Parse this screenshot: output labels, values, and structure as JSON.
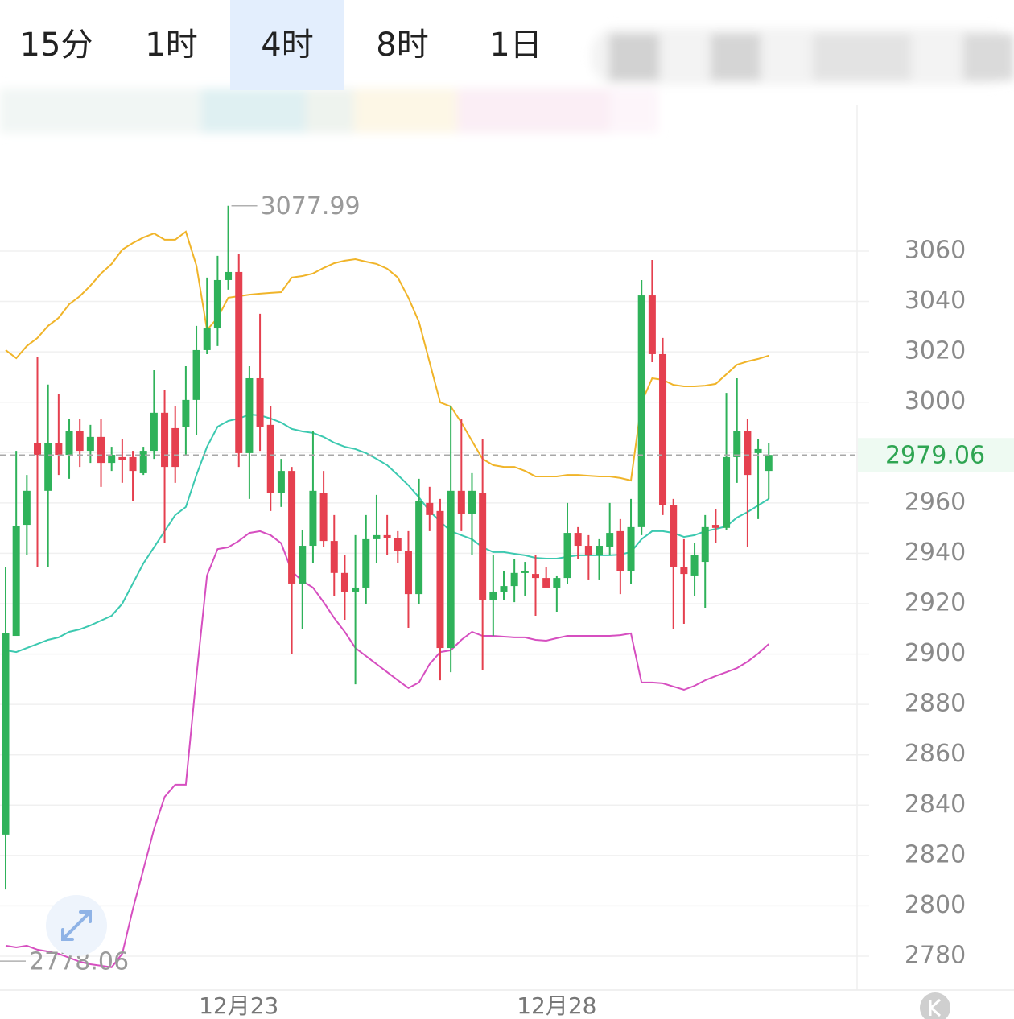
{
  "timeframes": [
    "15分",
    "1时",
    "4时",
    "8时",
    "1日"
  ],
  "active_timeframe": "4时",
  "chart_data": {
    "type": "candlestick",
    "categories": [
      null,
      null,
      null,
      null,
      null,
      null,
      null,
      null,
      null,
      null,
      null,
      null,
      null,
      null,
      null,
      null,
      null,
      null,
      null,
      null,
      null,
      null,
      "12月23",
      null,
      null,
      null,
      null,
      null,
      null,
      null,
      null,
      null,
      null,
      null,
      null,
      null,
      null,
      null,
      null,
      null,
      null,
      null,
      null,
      null,
      null,
      null,
      null,
      null,
      null,
      null,
      null,
      null,
      "12月28",
      null,
      null,
      null,
      null,
      null,
      null,
      null,
      null,
      null,
      null,
      null,
      null,
      null,
      null,
      null,
      null,
      null,
      null,
      null,
      null
    ],
    "ohlc": [
      [
        2828.3,
        2934.4,
        2806.5,
        2908.2
      ],
      [
        2907.2,
        2980.7,
        2907.2,
        2951.0
      ],
      [
        2951.3,
        2971.1,
        2939.2,
        2964.8
      ],
      [
        2983.9,
        3018.1,
        2934.4,
        2979.1
      ],
      [
        2964.8,
        3007.0,
        2934.4,
        2983.9
      ],
      [
        2983.9,
        3003.1,
        2971.1,
        2979.1
      ],
      [
        2979.1,
        2993.5,
        2969.6,
        2988.7
      ],
      [
        2988.7,
        2993.5,
        2974.3,
        2980.7
      ],
      [
        2980.7,
        2991.0,
        2975.9,
        2986.2
      ],
      [
        2986.2,
        2993.5,
        2966.4,
        2975.9
      ],
      [
        2975.9,
        2982.3,
        2972.7,
        2979.1
      ],
      [
        2978.2,
        2985.5,
        2968.0,
        2976.9
      ],
      [
        2978.2,
        2980.7,
        2960.9,
        2972.7
      ],
      [
        2971.8,
        2982.3,
        2971.1,
        2980.7
      ],
      [
        2980.7,
        3012.7,
        2977.5,
        2995.8
      ],
      [
        2995.8,
        3004.7,
        2944.0,
        2974.3
      ],
      [
        2989.7,
        2998.3,
        2968.0,
        2974.3
      ],
      [
        2990.3,
        3014.3,
        2979.1,
        3000.9
      ],
      [
        3000.9,
        3030.3,
        2987.1,
        3020.7
      ],
      [
        3020.7,
        3049.5,
        3019.1,
        3029.3
      ],
      [
        3029.3,
        3058.1,
        3022.3,
        3048.5
      ],
      [
        3048.5,
        3077.99,
        3044.7,
        3051.7
      ],
      [
        3051.7,
        3059.0,
        2974.3,
        2979.8
      ],
      [
        2979.8,
        3014.3,
        2961.6,
        3009.5
      ],
      [
        3009.5,
        3035.1,
        2980.7,
        2990.3
      ],
      [
        2991.0,
        2998.3,
        2956.8,
        2964.1
      ],
      [
        2964.1,
        2977.5,
        2958.4,
        2972.7
      ],
      [
        2972.7,
        2974.3,
        2900.2,
        2928.0
      ],
      [
        2928.0,
        2949.4,
        2909.8,
        2943.0
      ],
      [
        2943.0,
        2988.7,
        2936.0,
        2964.8
      ],
      [
        2964.1,
        2972.7,
        2942.4,
        2944.9
      ],
      [
        2944.9,
        2955.2,
        2923.2,
        2932.2
      ],
      [
        2932.2,
        2939.2,
        2913.6,
        2924.8
      ],
      [
        2924.8,
        2947.2,
        2888.0,
        2926.4
      ],
      [
        2926.4,
        2955.2,
        2920.0,
        2945.6
      ],
      [
        2945.6,
        2963.2,
        2936.0,
        2947.2
      ],
      [
        2947.2,
        2955.2,
        2939.2,
        2946.2
      ],
      [
        2946.2,
        2948.8,
        2936.0,
        2940.8
      ],
      [
        2940.8,
        2948.8,
        2910.4,
        2923.8
      ],
      [
        2923.8,
        2969.6,
        2920.0,
        2960.6
      ],
      [
        2960.0,
        2966.4,
        2948.8,
        2955.2
      ],
      [
        2956.8,
        2961.6,
        2889.6,
        2902.4
      ],
      [
        2902.4,
        2998.3,
        2892.8,
        2964.8
      ],
      [
        2964.8,
        2993.5,
        2948.8,
        2955.8
      ],
      [
        2955.8,
        2971.8,
        2939.2,
        2964.8
      ],
      [
        2964.1,
        2985.5,
        2893.8,
        2921.6
      ],
      [
        2921.6,
        2939.2,
        2907.2,
        2924.8
      ],
      [
        2924.8,
        2932.8,
        2921.6,
        2927.0
      ],
      [
        2927.0,
        2937.6,
        2920.6,
        2932.2
      ],
      [
        2932.2,
        2936.6,
        2923.2,
        2932.8
      ],
      [
        2931.8,
        2939.2,
        2915.2,
        2930.2
      ],
      [
        2930.2,
        2934.4,
        2928.0,
        2926.4
      ],
      [
        2926.4,
        2931.2,
        2916.8,
        2930.2
      ],
      [
        2930.2,
        2960.0,
        2928.0,
        2948.1
      ],
      [
        2948.1,
        2950.4,
        2937.6,
        2943.0
      ],
      [
        2943.0,
        2947.2,
        2929.6,
        2939.2
      ],
      [
        2939.2,
        2945.6,
        2929.6,
        2943.0
      ],
      [
        2942.4,
        2960.0,
        2939.2,
        2948.1
      ],
      [
        2948.8,
        2953.6,
        2923.8,
        2932.8
      ],
      [
        2932.8,
        2961.6,
        2928.0,
        2950.4
      ],
      [
        2950.4,
        3048.5,
        2947.2,
        3042.4
      ],
      [
        3042.4,
        3056.5,
        3015.9,
        3019.1
      ],
      [
        3019.1,
        3025.5,
        2955.2,
        2959.0
      ],
      [
        2959.0,
        2961.6,
        2909.8,
        2934.4
      ],
      [
        2934.4,
        2945.6,
        2912.0,
        2931.8
      ],
      [
        2931.2,
        2944.0,
        2923.2,
        2939.2
      ],
      [
        2936.6,
        2955.2,
        2918.4,
        2950.4
      ],
      [
        2951.3,
        2957.7,
        2944.0,
        2950.1
      ],
      [
        2950.1,
        3003.7,
        2949.4,
        2978.2
      ],
      [
        2978.2,
        3009.5,
        2968.0,
        2988.7
      ],
      [
        2988.7,
        2993.5,
        2942.4,
        2971.1
      ],
      [
        2979.8,
        2985.5,
        2953.6,
        2981.4
      ],
      [
        2972.7,
        2983.9,
        2961.6,
        2979.06
      ]
    ],
    "up_color": "#2fb25a",
    "down_color": "#e5404f",
    "bands": [
      {
        "color": "#f0b429",
        "values": [
          3020.7,
          3017.5,
          3022.3,
          3025.5,
          3030.3,
          3033.5,
          3038.9,
          3042.1,
          3046.3,
          3051.1,
          3054.9,
          3060.6,
          3063.2,
          3065.4,
          3067.0,
          3064.5,
          3064.5,
          3067.7,
          3054.2,
          3028.7,
          3033.5,
          3041.5,
          3042.1,
          3042.7,
          3043.1,
          3043.4,
          3043.7,
          3049.5,
          3050.1,
          3051.1,
          3053.3,
          3055.2,
          3056.2,
          3056.8,
          3055.8,
          3054.9,
          3053.0,
          3049.5,
          3041.5,
          3031.9,
          3015.9,
          2999.9,
          2998.3,
          2991.9,
          2984.6,
          2977.5,
          2975.0,
          2974.3,
          2974.3,
          2972.7,
          2970.5,
          2970.5,
          2970.5,
          2971.1,
          2971.1,
          2970.8,
          2970.5,
          2970.5,
          2969.9,
          2968.9,
          2999.9,
          3009.5,
          3008.9,
          3006.9,
          3006.3,
          3006.3,
          3006.6,
          3007.3,
          3011.1,
          3014.9,
          3016.2,
          3017.2,
          3018.5
        ]
      },
      {
        "color": "#3cc9b0",
        "values": [
          2901.5,
          2900.8,
          2902.4,
          2904.0,
          2905.6,
          2906.6,
          2908.8,
          2909.8,
          2911.4,
          2913.3,
          2915.2,
          2920.0,
          2928.0,
          2936.0,
          2942.4,
          2948.8,
          2955.2,
          2958.4,
          2971.1,
          2982.3,
          2990.3,
          2992.6,
          2993.5,
          2995.1,
          2994.8,
          2993.5,
          2991.9,
          2989.4,
          2988.4,
          2987.8,
          2986.2,
          2983.9,
          2982.3,
          2981.4,
          2979.8,
          2977.5,
          2975.0,
          2971.1,
          2967.0,
          2962.2,
          2956.8,
          2952.6,
          2948.8,
          2947.2,
          2945.6,
          2942.4,
          2940.5,
          2940.5,
          2939.8,
          2939.2,
          2938.2,
          2937.9,
          2937.9,
          2938.6,
          2939.2,
          2939.2,
          2939.2,
          2939.2,
          2939.5,
          2940.5,
          2945.6,
          2948.8,
          2948.8,
          2948.1,
          2946.5,
          2947.2,
          2948.8,
          2949.7,
          2950.7,
          2954.2,
          2956.4,
          2959.0,
          2961.6
        ]
      },
      {
        "color": "#d64fc0",
        "values": [
          2784.2,
          2783.5,
          2784.2,
          2782.6,
          2781.9,
          2781.0,
          2779.4,
          2777.8,
          2776.8,
          2776.2,
          2775.6,
          2781.0,
          2798.6,
          2814.5,
          2830.5,
          2843.3,
          2848.1,
          2848.1,
          2891.3,
          2931.2,
          2941.7,
          2942.4,
          2944.9,
          2948.1,
          2948.8,
          2947.2,
          2944.0,
          2932.8,
          2929.0,
          2926.4,
          2920.6,
          2914.3,
          2908.8,
          2902.4,
          2899.2,
          2896.0,
          2892.8,
          2889.6,
          2886.5,
          2888.7,
          2896.0,
          2900.8,
          2901.5,
          2905.6,
          2908.8,
          2907.2,
          2907.2,
          2906.9,
          2906.6,
          2906.6,
          2905.6,
          2905.3,
          2906.3,
          2907.2,
          2907.2,
          2907.2,
          2907.2,
          2907.2,
          2907.5,
          2908.2,
          2888.7,
          2888.7,
          2888.4,
          2887.1,
          2885.8,
          2887.4,
          2889.6,
          2891.3,
          2892.8,
          2894.4,
          2897.0,
          2900.2,
          2904.0
        ]
      }
    ],
    "low_marker": 2778.06,
    "ylim": [
      2766,
      3105
    ],
    "yticks": [
      2780,
      2800,
      2820,
      2840,
      2860,
      2880,
      2900,
      2920,
      2940,
      2960,
      2980,
      3000,
      3020,
      3040,
      3060
    ],
    "grid": true
  }
}
